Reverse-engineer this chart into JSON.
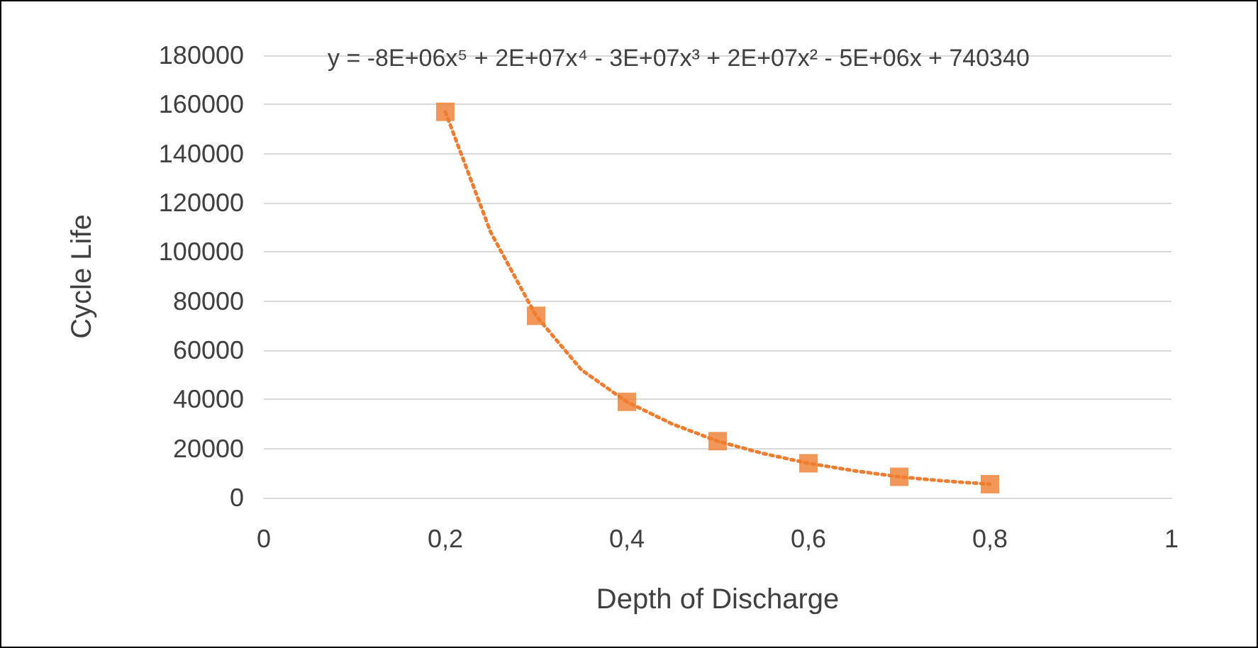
{
  "chart_data": {
    "type": "scatter",
    "xlabel": "Depth of Discharge",
    "ylabel": "Cycle Life",
    "annotations": [
      "y = -8E+06x⁵ + 2E+07x⁴ - 3E+07x³ + 2E+07x² - 5E+06x + 740340"
    ],
    "xlim": [
      0,
      1
    ],
    "xticks": [
      0,
      {
        "value": 0.2,
        "label": "0,2"
      },
      {
        "value": 0.4,
        "label": "0,4"
      },
      {
        "value": 0.6,
        "label": "0,6"
      },
      {
        "value": 0.8,
        "label": "0,8"
      },
      1
    ],
    "ylim": [
      0,
      180000
    ],
    "yticks": [
      0,
      20000,
      40000,
      60000,
      80000,
      100000,
      120000,
      140000,
      160000,
      180000
    ],
    "grid": "y",
    "series": [
      {
        "type": "line",
        "color": "#ed7d31",
        "line_style": "dotted",
        "marker": "none",
        "x": [
          0.2,
          0.25,
          0.3,
          0.35,
          0.4,
          0.45,
          0.5,
          0.55,
          0.6,
          0.65,
          0.7,
          0.75,
          0.8
        ],
        "values": [
          157000,
          108000,
          74000,
          52000,
          39000,
          30000,
          23000,
          18000,
          14000,
          11000,
          8500,
          6800,
          5500
        ]
      },
      {
        "color": "#ed7d31",
        "marker": "square",
        "x": [
          0.2,
          0.3,
          0.4,
          0.5,
          0.6,
          0.7,
          0.8
        ],
        "values": [
          157000,
          74000,
          39000,
          23000,
          14000,
          8500,
          5500
        ]
      }
    ]
  }
}
